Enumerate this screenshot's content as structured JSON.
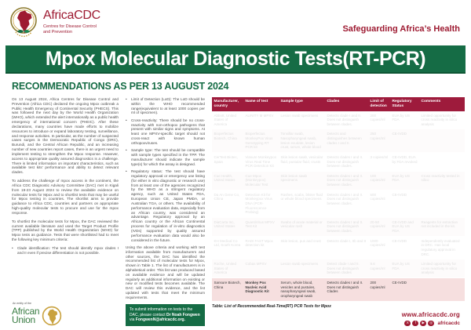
{
  "colors": {
    "maroon": "#9E1B3C",
    "maroon-text": "#9E1B32",
    "green": "#156C45",
    "pink": "#F6DFDF",
    "gold": "#8C7A2E",
    "au-green": "#3A7D44"
  },
  "header": {
    "logo_title": "AfricaCDC",
    "logo_subtitle": "Centres for Disease Control and Prevention",
    "tagline": "Safeguarding Africa’s Health"
  },
  "banner": {
    "title": "Mpox Molecular Diagnostic Tests(RT-PCR)"
  },
  "recommendations_heading": "RECOMMENDATIONS AS PER 13 AUGUST 2024",
  "left_column": {
    "paragraphs": [
      "On 13 August 2024, Africa Centres for Disease Control and Prevention (Africa CDC) declared the ongoing Mpox outbreak a Public Health Emergency of Continental Security (PHECS). This was followed the next day by the World Health Organization (WHO), which extended the alert internationally as a public health emergency of international concern (PHEIC). After these declarations, many countries have made efforts to mobilize resources to introduce or expand laboratory testing, surveillance, and response activities. In particular, as the number of suspected cases surges in the Democratic Republic of Congo (DRC), Burundi, and the Central African Republic, and an increasing number of new countries report cases, there is an urgent need to implement testing to strengthen the Mpox response. However, access to appropriate quality assured diagnostics is a challenge. There is limited information on important characteristics, such as available test kits’ performance and ability to detect relevant clades.",
      "To address the challenge of mpox access in the continent, the Africa CDC Diagnostic Advisory Committee (DAC) met in Kigali from 19-23 August 2024 to review the available evidence on molecular tests for Mpox and to shortlist tests that may be useful for Mpox testing in countries. The shortlist aims to provide guidance to Africa CDC, countries and partners on appropriate high-quality molecular tests to procure and use for the mpox response.",
      "To shortlist the molecular tests for Mpox, the DAC reviewed the current available literature and used the Target Product Profile (TPP) published by the World Health Organization (WHO) for Mpox tests as guidance. Tests that were shortlisted had to meet the following key minimum criteria:"
    ],
    "bullets": [
      "Clade identification: The test should identify mpox clades I and II even if precise differentiation is not possible."
    ]
  },
  "middle_column": {
    "bullets": [
      "Limit of Detection (LoD): The LoD should be within the WHO recommended range(equivalent to at least 1000 copies per ml of specimen).",
      "Cross-reactivity: There should be no cross-reactivity with non-orthopox pathogens that present with similar signs and symptoms. At least one MPXV-specific target should not cross-react with known human orthopoxviruses.",
      "Sample type: The test should be compatible with sample types specified in the TPP. The manufacturer should indicate the sample type(s) for which the assay is designed.",
      "Regulatory status: The test should have regulatory approval or emergency use listing (for either in vitro diagnostic or research use) from at least one of the agencies recognized by the WHO as a stringent regulatory agency, such as United States FDA, European Union CE, Japan PMDA, or Australian TGA, or others. The availability of performance evaluation data, especially from an African country, was considered an advantage. Regulatory approval by an African country or the African Continental process for regulation of in-vitro diagnostics (IVDs) supported by quality assured performance evaluation data would also be considered in the future."
    ],
    "closing_paragraph": "Using the above criteria and working with test information available from manufacturers and other sources, the DAC has identified the recommended list of molecular tests for Mpox, shown in Table 1. The list of manufacturers is in alphabetical order. This list was produced based on available evidence and will be updated regularly as additional information on existing or new or modified tests becomes available. The DAC will review this evidence, and the list updated with tests that meet the minimum requirements.",
    "contact_box": {
      "prefix": "To submit information on tests to the DAC, please contact ",
      "name": "Dr Noah Fongwen",
      "via": " via ",
      "email": "FongwenN@africacdc.org."
    }
  },
  "table": {
    "headers": [
      "Manufacturer, country",
      "Name of test",
      "Sample type",
      "Clades",
      "Limit of detection",
      "Regulatory Status",
      "Comments"
    ],
    "rows": [
      {
        "faded": true,
        "manufacturer": "Abbott, United States of America",
        "test": "ALINITY M MPXV",
        "sample": "Lesion swab specimens",
        "clades": "Detects clade I and II. Does not distinguish between clades.",
        "lod": "200 copies/ml",
        "status": "EUA by US FDA",
        "comments": "Limited opportunity for cross reactivity in silico analysis"
      },
      {
        "faded": true,
        "manufacturer": "Bioperfectus Biotech, China",
        "test": "Bioperfectus MonkeyPox Virus Genotyping RT PCR kit",
        "sample": "Tonsillar swab, Nasopharyngeal swab, lesion exudate, lesion crust, serum, whole blood",
        "clades": "Detects and distinguishes between clades I and II.",
        "lod": "250 copies/ml",
        "status": "CE-IVDD",
        "comments": ""
      },
      {
        "faded": true,
        "manufacturer": "CerTest Biotec, Spain",
        "test": "Viasure Monkeypox Virus Real Time PCR Detection Kit",
        "sample": "Skin lesion swab, vesicular fluid, pustular fluid, crusts",
        "clades": "Detects clades I and II. Does not distinguish between clades.",
        "lod": "3 copies/ml",
        "status": "CE-IVDD, EUA by FDA revoked",
        "comments": ""
      },
      {
        "faded": true,
        "manufacturer": "Cue Health, United States",
        "test": "Cue Mpox (Monkeypox) Molecular Test",
        "sample": "Skin lesion swab specimens",
        "clades": "Detects clades I and II. Does not distinguish between clades.",
        "lod": "100 copies/ml",
        "status": "EUA by US FDA",
        "comments": "Cross reactivity tested in silico"
      },
      {
        "faded": true,
        "manufacturer": "Da An Gene Co, China",
        "test": "Detection Kit for Monkeypox Virus DNA (PCR-Fluorescence Probing)",
        "sample": "Rashes, scabs, blister fluid or whole blood specimens",
        "clades": "Detects clades I and II. Does not distinguish between clades.",
        "lod": "500 copies/ml",
        "status": "CE-IVDD",
        "comments": ""
      },
      {
        "faded": true,
        "manufacturer": "DiaCarta Inc, United States",
        "test": "QuantiVirus MPXV Test Kit",
        "sample": "Swabs of acute material or vesicular rash",
        "clades": "Detects clades I and II. Does not distinguish between clades.",
        "lod": "20-50 copies/ml",
        "status": "CE-IVDD and EUA by US FDA",
        "comments": "Reagents for extraction not included in the kit."
      },
      {
        "faded": true,
        "manufacturer": "KH Medical Co Ltd, South Korea",
        "test": "RADI FAST Mpox detection kit",
        "sample": "Skin lesion, pus and crust",
        "clades": "Detects clade I, IIb and II",
        "lod": "1000 copies/ml",
        "status": "CE-IVDD",
        "comments": "Independently evaluated in DRC. Has local regulatory approval in DRC."
      },
      {
        "faded": true,
        "manufacturer": "Roche, United States of America",
        "test": "Cobas MPXV",
        "sample": "Lesion swab specimens",
        "clades": "Detect clade I and II. Does not distinguish between clades",
        "lod": "9.6 copies/ml",
        "status": "EUA by US FDA",
        "comments": "Limited opportunity for cross reactivity in silico analysis"
      },
      {
        "faded": false,
        "manufacturer": "Sansure Biotech, China",
        "test": "Monkey Pox Nucleic Acid Diagnostic Kit",
        "sample": "Serum, whole blood, vesicles and pustules, nasopharyngeal swab, oropharyngeal swab",
        "clades": "Detects clades I and II. Does not distinguish Clades",
        "lod": "200 copies/ml",
        "status": "CE-IVDD",
        "comments": ""
      }
    ],
    "caption": "Table: List of Recommended Real-Time(RT) PCR Tests for Mpox"
  },
  "footer": {
    "entity": "An entity of the",
    "au_line1": "African",
    "au_line2": "Union",
    "website": "www.africacdc.org",
    "social_handle": "africacdc",
    "social_icons": [
      {
        "name": "x-icon",
        "glyph": "X"
      },
      {
        "name": "facebook-icon",
        "glyph": "f"
      },
      {
        "name": "youtube-icon",
        "glyph": "▶"
      },
      {
        "name": "instagram-icon",
        "glyph": "◎"
      }
    ]
  }
}
